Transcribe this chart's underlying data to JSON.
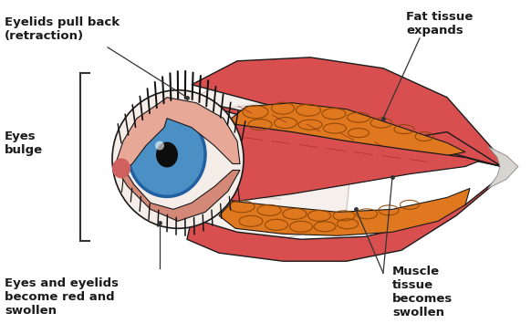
{
  "background_color": "#ffffff",
  "labels": {
    "eyelids_pull_back": "Eyelids pull back\n(retraction)",
    "fat_tissue": "Fat tissue\nexpands",
    "eyes_bulge": "Eyes\nbulge",
    "eyes_red": "Eyes and eyelids\nbecome red and\nswollen",
    "muscle_tissue": "Muscle\ntissue\nbecomes\nswollen"
  },
  "colors": {
    "muscle_red": "#d94f4f",
    "muscle_mid": "#c44040",
    "muscle_dark_line": "#8B1a1a",
    "fat_orange": "#e07820",
    "fat_light": "#e89040",
    "sclera_white": "#f0ece8",
    "sclera_back": "#e8e4e0",
    "eye_blue": "#4a90c4",
    "eye_dark_blue": "#2060a0",
    "pupil": "#141414",
    "skin_pink": "#e8a898",
    "eyelid_pink": "#d48878",
    "conjunctiva": "#d47070",
    "tendon_white": "#d8d4d0",
    "outline": "#1a1a1a",
    "text_color": "#1a1a1a",
    "line_color": "#333333"
  },
  "figsize": [
    5.82,
    3.66
  ],
  "dpi": 100
}
